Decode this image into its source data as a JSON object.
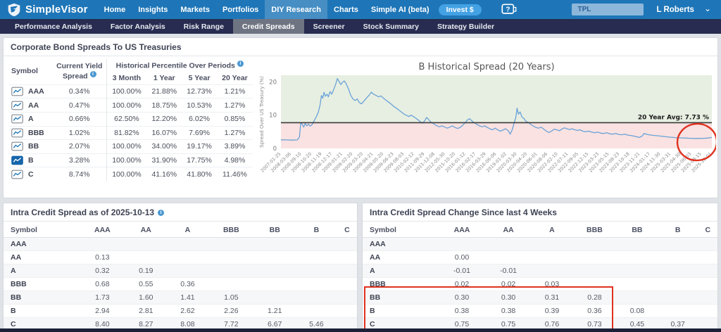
{
  "colors": {
    "brand_blue": "#1e76b8",
    "subnav_navy": "#272c50",
    "annotation_red": "#df3220",
    "selected_icon_blue": "#1565ab"
  },
  "header": {
    "brand": "SimpleVisor",
    "nav": [
      "Home",
      "Insights",
      "Markets",
      "Portfolios",
      "DIY Research",
      "Charts",
      "Simple AI (beta)"
    ],
    "active_nav": "DIY Research",
    "invest_label": "Invest $",
    "search_value": "TPL",
    "user_name": "L Roberts"
  },
  "subnav": {
    "tabs": [
      "Performance Analysis",
      "Factor Analysis",
      "Risk Range",
      "Credit Spreads",
      "Screener",
      "Stock Summary",
      "Strategy Builder"
    ],
    "active_tab": "Credit Spreads"
  },
  "spreads_panel": {
    "title": "Corporate Bond Spreads To US Treasuries",
    "table": {
      "col_symbol": "Symbol",
      "col_yield": "Current Yield Spread",
      "col_group": "Historical Percentile Over Periods",
      "subcols": [
        "3 Month",
        "1 Year",
        "5 Year",
        "20 Year"
      ],
      "rows": [
        {
          "symbol": "AAA",
          "yield": "0.34%",
          "p": [
            "100.00%",
            "21.88%",
            "12.73%",
            "1.21%"
          ],
          "selected": false
        },
        {
          "symbol": "AA",
          "yield": "0.47%",
          "p": [
            "100.00%",
            "18.75%",
            "10.53%",
            "1.27%"
          ],
          "selected": false
        },
        {
          "symbol": "A",
          "yield": "0.66%",
          "p": [
            "62.50%",
            "12.20%",
            "6.02%",
            "0.85%"
          ],
          "selected": false
        },
        {
          "symbol": "BBB",
          "yield": "1.02%",
          "p": [
            "81.82%",
            "16.07%",
            "7.69%",
            "1.27%"
          ],
          "selected": false
        },
        {
          "symbol": "BB",
          "yield": "2.07%",
          "p": [
            "100.00%",
            "34.00%",
            "19.17%",
            "3.89%"
          ],
          "selected": false
        },
        {
          "symbol": "B",
          "yield": "3.28%",
          "p": [
            "100.00%",
            "31.90%",
            "17.75%",
            "4.98%"
          ],
          "selected": true
        },
        {
          "symbol": "C",
          "yield": "8.74%",
          "p": [
            "100.00%",
            "41.16%",
            "41.80%",
            "11.46%"
          ],
          "selected": false
        }
      ]
    }
  },
  "chart_data": {
    "type": "line",
    "title": "B Historical Spread (20 Years)",
    "ylabel": "Spread Over US Treasury (%)",
    "yticks": [
      0,
      10,
      20
    ],
    "ylim": [
      0,
      22
    ],
    "avg": {
      "label": "20 Year Avg: 7.73 %",
      "value": 7.73
    },
    "bands": {
      "above_avg_color": "#e7efe2",
      "below_avg_color": "#f9e2e1"
    },
    "line_color": "#6aa2d8",
    "annotation": {
      "type": "circle",
      "color": "#df3220",
      "target": "latest values at right edge"
    },
    "x_labels": [
      "2007-01-25",
      "2008-03-06",
      "2008-09-10",
      "2008-10-20",
      "2008-11-19",
      "2008-12-17",
      "2009-01-21",
      "2009-02-20",
      "2009-03-20",
      "2009-04-21",
      "2009-05-20",
      "2009-06-23",
      "2009-08-03",
      "2010-02-12",
      "2011-09-29",
      "2011-12-08",
      "2012-05-30",
      "2015-10-20",
      "2016-01-12",
      "2016-02-17",
      "2016-03-29",
      "2016-06-06",
      "2019-01-02",
      "2020-03-30",
      "2020-04-20",
      "2020-06-01",
      "2020-08-06",
      "2022-02-10",
      "2022-07-11",
      "2022-09-05",
      "2022-12-15",
      "2023-03-23",
      "2023-05-15",
      "2023-08-23",
      "2023-10-18",
      "2023-11-21",
      "2024-01-17",
      "2024-11-30",
      "2025-03-31",
      "2025-04-30",
      "2025-06-03",
      "2025-08-15",
      "2025-10-01"
    ],
    "series": [
      {
        "name": "B",
        "points": [
          [
            0,
            2.6
          ],
          [
            0.012,
            2.55
          ],
          [
            0.025,
            2.5
          ],
          [
            0.038,
            2.55
          ],
          [
            0.043,
            3.4
          ],
          [
            0.046,
            7.8
          ],
          [
            0.05,
            7.1
          ],
          [
            0.053,
            6.4
          ],
          [
            0.056,
            7.5
          ],
          [
            0.06,
            6.8
          ],
          [
            0.064,
            7.3
          ],
          [
            0.068,
            6.7
          ],
          [
            0.072,
            7.1
          ],
          [
            0.077,
            8.3
          ],
          [
            0.082,
            9.5
          ],
          [
            0.087,
            11
          ],
          [
            0.091,
            13.2
          ],
          [
            0.094,
            15.9
          ],
          [
            0.097,
            15.1
          ],
          [
            0.1,
            16.9
          ],
          [
            0.103,
            15.7
          ],
          [
            0.107,
            16.3
          ],
          [
            0.11,
            15.5
          ],
          [
            0.114,
            17.1
          ],
          [
            0.118,
            16.3
          ],
          [
            0.122,
            17.6
          ],
          [
            0.127,
            19.3
          ],
          [
            0.131,
            21
          ],
          [
            0.135,
            20.1
          ],
          [
            0.139,
            19.2
          ],
          [
            0.143,
            19.9
          ],
          [
            0.147,
            20.3
          ],
          [
            0.152,
            19.3
          ],
          [
            0.157,
            17.8
          ],
          [
            0.162,
            16
          ],
          [
            0.167,
            14.9
          ],
          [
            0.172,
            14.4
          ],
          [
            0.177,
            14.9
          ],
          [
            0.182,
            13.8
          ],
          [
            0.187,
            13.4
          ],
          [
            0.193,
            14.3
          ],
          [
            0.199,
            15.2
          ],
          [
            0.205,
            16.1
          ],
          [
            0.21,
            16.9
          ],
          [
            0.215,
            16.3
          ],
          [
            0.221,
            15.9
          ],
          [
            0.227,
            15.5
          ],
          [
            0.232,
            15.8
          ],
          [
            0.238,
            15.1
          ],
          [
            0.244,
            14.5
          ],
          [
            0.25,
            13.9
          ],
          [
            0.256,
            13.3
          ],
          [
            0.262,
            12.6
          ],
          [
            0.268,
            12.1
          ],
          [
            0.274,
            11.5
          ],
          [
            0.28,
            10.9
          ],
          [
            0.286,
            10.3
          ],
          [
            0.292,
            9.9
          ],
          [
            0.297,
            9.6
          ],
          [
            0.302,
            10
          ],
          [
            0.307,
            9.6
          ],
          [
            0.312,
            9.2
          ],
          [
            0.318,
            8.6
          ],
          [
            0.324,
            8
          ],
          [
            0.329,
            7.6
          ],
          [
            0.334,
            8.4
          ],
          [
            0.338,
            9.3
          ],
          [
            0.342,
            8.8
          ],
          [
            0.347,
            8
          ],
          [
            0.352,
            7.6
          ],
          [
            0.357,
            7.2
          ],
          [
            0.362,
            6.8
          ],
          [
            0.368,
            6.5
          ],
          [
            0.374,
            6.8
          ],
          [
            0.38,
            6.4
          ],
          [
            0.386,
            6.1
          ],
          [
            0.392,
            6.4
          ],
          [
            0.398,
            6.8
          ],
          [
            0.404,
            6.3
          ],
          [
            0.41,
            6
          ],
          [
            0.416,
            6.3
          ],
          [
            0.422,
            7
          ],
          [
            0.428,
            7.8
          ],
          [
            0.433,
            8.6
          ],
          [
            0.438,
            8.9
          ],
          [
            0.443,
            8.3
          ],
          [
            0.449,
            7.7
          ],
          [
            0.455,
            7.2
          ],
          [
            0.461,
            6.8
          ],
          [
            0.467,
            6.5
          ],
          [
            0.473,
            6.8
          ],
          [
            0.479,
            6.3
          ],
          [
            0.485,
            5.9
          ],
          [
            0.491,
            5.6
          ],
          [
            0.497,
            6.1
          ],
          [
            0.503,
            5.6
          ],
          [
            0.509,
            5.2
          ],
          [
            0.515,
            5.5
          ],
          [
            0.521,
            5.9
          ],
          [
            0.527,
            5.4
          ],
          [
            0.532,
            4.3
          ],
          [
            0.537,
            5.7
          ],
          [
            0.541,
            7.6
          ],
          [
            0.545,
            9.2
          ],
          [
            0.548,
            12.1
          ],
          [
            0.551,
            10.3
          ],
          [
            0.555,
            11
          ],
          [
            0.559,
            9.5
          ],
          [
            0.564,
            9
          ],
          [
            0.569,
            8.1
          ],
          [
            0.574,
            7.8
          ],
          [
            0.58,
            7.2
          ],
          [
            0.586,
            6.7
          ],
          [
            0.592,
            6.3
          ],
          [
            0.598,
            6.1
          ],
          [
            0.604,
            6.4
          ],
          [
            0.61,
            5.8
          ],
          [
            0.616,
            5.2
          ],
          [
            0.622,
            4.8
          ],
          [
            0.628,
            5.2
          ],
          [
            0.634,
            5.8
          ],
          [
            0.64,
            5.6
          ],
          [
            0.646,
            5.3
          ],
          [
            0.652,
            5.8
          ],
          [
            0.658,
            6.2
          ],
          [
            0.664,
            5.9
          ],
          [
            0.67,
            5.7
          ],
          [
            0.676,
            5.9
          ],
          [
            0.682,
            5.6
          ],
          [
            0.688,
            5.4
          ],
          [
            0.694,
            5.6
          ],
          [
            0.7,
            5.2
          ],
          [
            0.707,
            5
          ],
          [
            0.714,
            5.2
          ],
          [
            0.721,
            4.9
          ],
          [
            0.728,
            4.7
          ],
          [
            0.735,
            4.9
          ],
          [
            0.742,
            4.6
          ],
          [
            0.749,
            4.5
          ],
          [
            0.756,
            4.7
          ],
          [
            0.763,
            4.4
          ],
          [
            0.77,
            4.3
          ],
          [
            0.777,
            4.5
          ],
          [
            0.784,
            4.2
          ],
          [
            0.791,
            4.1
          ],
          [
            0.798,
            4.3
          ],
          [
            0.805,
            4
          ],
          [
            0.812,
            3.9
          ],
          [
            0.819,
            3.7
          ],
          [
            0.826,
            3.5
          ],
          [
            0.832,
            3.3
          ],
          [
            0.838,
            3.7
          ],
          [
            0.843,
            4.5
          ],
          [
            0.848,
            4.3
          ],
          [
            0.854,
            4.1
          ],
          [
            0.86,
            4
          ],
          [
            0.867,
            3.9
          ],
          [
            0.874,
            3.8
          ],
          [
            0.881,
            3.7
          ],
          [
            0.888,
            3.6
          ],
          [
            0.895,
            3.5
          ],
          [
            0.902,
            3.4
          ],
          [
            0.91,
            3.3
          ],
          [
            0.92,
            3.2
          ],
          [
            0.93,
            3.15
          ],
          [
            0.94,
            3.1
          ],
          [
            0.95,
            3.05
          ],
          [
            0.96,
            3
          ],
          [
            0.97,
            3
          ],
          [
            0.98,
            3.05
          ],
          [
            0.99,
            3.1
          ],
          [
            1,
            3.3
          ]
        ]
      }
    ]
  },
  "intra_spread_panel": {
    "title": "Intra Credit Spread as of 2025-10-13",
    "columns": [
      "Symbol",
      "AAA",
      "AA",
      "A",
      "BBB",
      "BB",
      "B",
      "C"
    ],
    "rows": [
      {
        "symbol": "AAA",
        "values": [
          "",
          "",
          "",
          "",
          "",
          "",
          ""
        ]
      },
      {
        "symbol": "AA",
        "values": [
          "0.13",
          "",
          "",
          "",
          "",
          "",
          ""
        ]
      },
      {
        "symbol": "A",
        "values": [
          "0.32",
          "0.19",
          "",
          "",
          "",
          "",
          ""
        ]
      },
      {
        "symbol": "BBB",
        "values": [
          "0.68",
          "0.55",
          "0.36",
          "",
          "",
          "",
          ""
        ]
      },
      {
        "symbol": "BB",
        "values": [
          "1.73",
          "1.60",
          "1.41",
          "1.05",
          "",
          "",
          ""
        ]
      },
      {
        "symbol": "B",
        "values": [
          "2.94",
          "2.81",
          "2.62",
          "2.26",
          "1.21",
          "",
          ""
        ]
      },
      {
        "symbol": "C",
        "values": [
          "8.40",
          "8.27",
          "8.08",
          "7.72",
          "6.67",
          "5.46",
          ""
        ]
      }
    ]
  },
  "intra_change_panel": {
    "title": "Intra Credit Spread Change Since last 4 Weeks",
    "columns": [
      "Symbol",
      "AAA",
      "AA",
      "A",
      "BBB",
      "BB",
      "B",
      "C"
    ],
    "rows": [
      {
        "symbol": "AAA",
        "values": [
          "",
          "",
          "",
          "",
          "",
          "",
          ""
        ]
      },
      {
        "symbol": "AA",
        "values": [
          "0.00",
          "",
          "",
          "",
          "",
          "",
          ""
        ]
      },
      {
        "symbol": "A",
        "values": [
          "-0.01",
          "-0.01",
          "",
          "",
          "",
          "",
          ""
        ]
      },
      {
        "symbol": "BBB",
        "values": [
          "0.02",
          "0.02",
          "0.03",
          "",
          "",
          "",
          ""
        ]
      },
      {
        "symbol": "BB",
        "values": [
          "0.30",
          "0.30",
          "0.31",
          "0.28",
          "",
          "",
          ""
        ]
      },
      {
        "symbol": "B",
        "values": [
          "0.38",
          "0.38",
          "0.39",
          "0.36",
          "0.08",
          "",
          ""
        ]
      },
      {
        "symbol": "C",
        "values": [
          "0.75",
          "0.75",
          "0.76",
          "0.73",
          "0.45",
          "0.37",
          ""
        ]
      }
    ],
    "annotation": {
      "type": "box",
      "color": "#df3220",
      "rows": [
        "BB",
        "B",
        "C"
      ],
      "columns": [
        "Symbol",
        "AAA",
        "AA",
        "A",
        "BBB"
      ]
    }
  }
}
